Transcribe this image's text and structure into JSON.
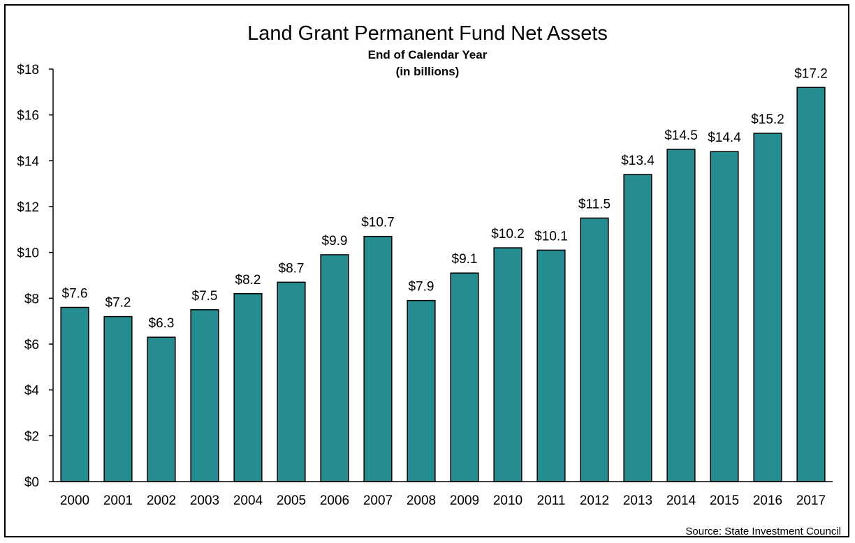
{
  "chart_data": {
    "type": "bar",
    "title": "Land Grant Permanent Fund Net Assets",
    "subtitle": [
      "End of Calendar Year",
      "(in billions)"
    ],
    "categories": [
      "2000",
      "2001",
      "2002",
      "2003",
      "2004",
      "2005",
      "2006",
      "2007",
      "2008",
      "2009",
      "2010",
      "2011",
      "2012",
      "2013",
      "2014",
      "2015",
      "2016",
      "2017"
    ],
    "values": [
      7.6,
      7.2,
      6.3,
      7.5,
      8.2,
      8.7,
      9.9,
      10.7,
      7.9,
      9.1,
      10.2,
      10.1,
      11.5,
      13.4,
      14.5,
      14.4,
      15.2,
      17.2
    ],
    "data_labels": [
      "$7.6",
      "$7.2",
      "$6.3",
      "$7.5",
      "$8.2",
      "$8.7",
      "$9.9",
      "$10.7",
      "$7.9",
      "$9.1",
      "$10.2",
      "$10.1",
      "$11.5",
      "$13.4",
      "$14.5",
      "$14.4",
      "$15.2",
      "$17.2"
    ],
    "ylim": [
      0,
      18
    ],
    "yticks": [
      0,
      2,
      4,
      6,
      8,
      10,
      12,
      14,
      16,
      18
    ],
    "ytick_labels": [
      "$0",
      "$2",
      "$4",
      "$6",
      "$8",
      "$10",
      "$12",
      "$14",
      "$16",
      "$18"
    ],
    "xlabel": "",
    "ylabel": "",
    "grid": false,
    "legend": "none",
    "source": "Source: State Investment Council",
    "colors": {
      "bar_fill": "#258c8f",
      "bar_stroke": "#000000",
      "axis": "#000000"
    }
  }
}
